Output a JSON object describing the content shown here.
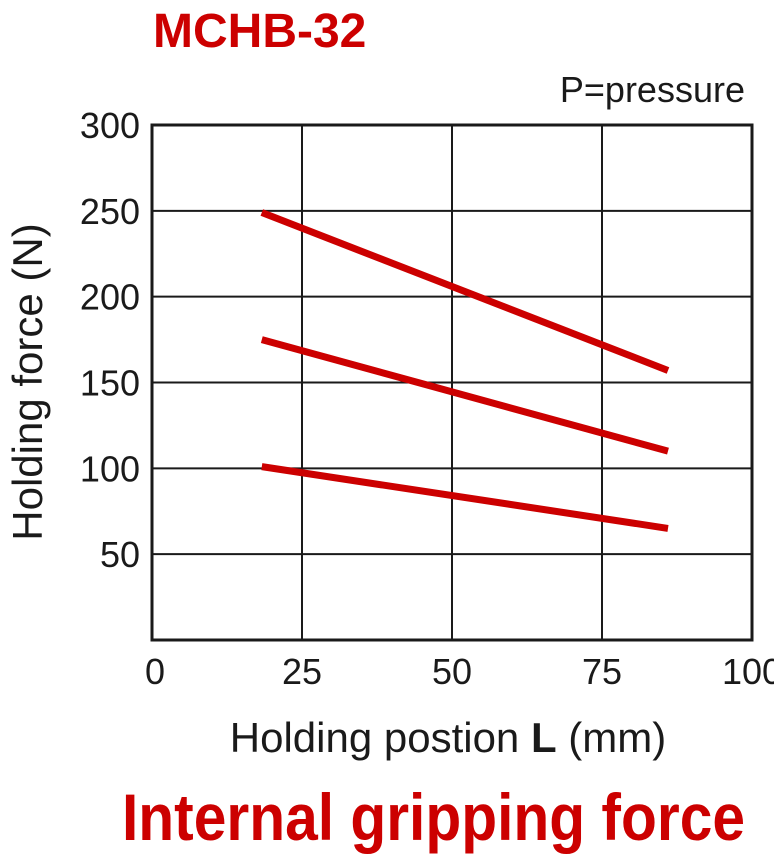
{
  "chart_data": {
    "type": "line",
    "title": "MCHB-32",
    "subtitle": "P=pressure",
    "ylabel": "Holding force (N)",
    "xlabel": [
      "Holding postion ",
      "L",
      " (mm)"
    ],
    "caption": "Internal gripping force",
    "x": [
      18.3,
      86
    ],
    "series": [
      {
        "color": "#cc0000",
        "values": [
          249,
          157
        ]
      },
      {
        "color": "#cc0000",
        "values": [
          175,
          110
        ]
      },
      {
        "color": "#cc0000",
        "values": [
          101,
          65
        ]
      }
    ],
    "xlim": [
      0,
      100
    ],
    "xticks": [
      0,
      25,
      50,
      75,
      100
    ],
    "ylim": [
      0,
      300
    ],
    "yticks": [
      50,
      100,
      150,
      200,
      250,
      300
    ],
    "grid": true
  }
}
